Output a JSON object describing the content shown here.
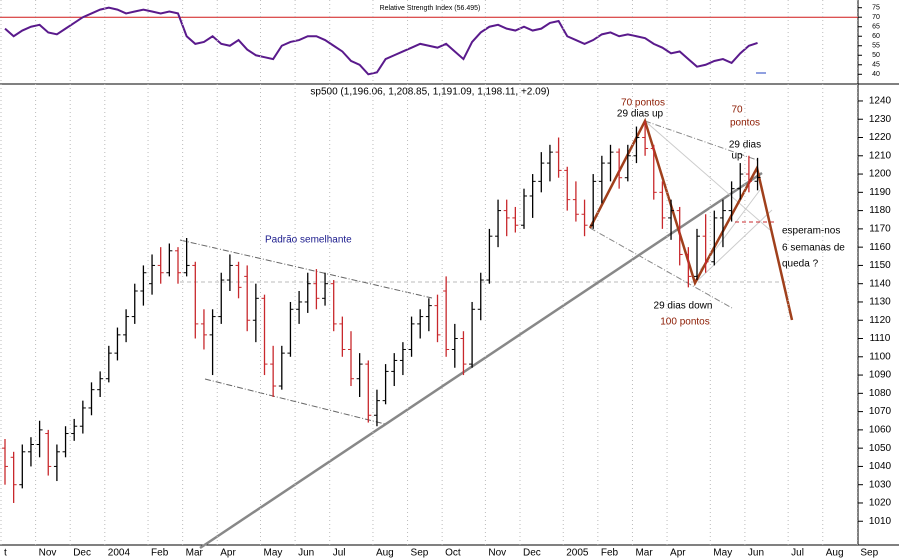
{
  "chart_data": [
    {
      "type": "line",
      "title": "Relative Strength Index (56.495)",
      "ylim": [
        37,
        78
      ],
      "yticks": [
        40,
        45,
        50,
        55,
        60,
        65,
        70,
        75
      ],
      "reference_line": 70,
      "reference_color": "#d01818",
      "series": [
        {
          "name": "RSI",
          "color": "#5a1a8c",
          "values": [
            64,
            60,
            63,
            65,
            66,
            62,
            61,
            64,
            67,
            70,
            72,
            74,
            75,
            74,
            72,
            73,
            74,
            73,
            72,
            73,
            72,
            60,
            56,
            57,
            60,
            56,
            55,
            58,
            53,
            50,
            49,
            48,
            55,
            57,
            58,
            60,
            60,
            58,
            55,
            52,
            47,
            45,
            40,
            41,
            48,
            50,
            52,
            54,
            56,
            55,
            54,
            56,
            52,
            48,
            57,
            62,
            65,
            66,
            64,
            63,
            65,
            63,
            64,
            67,
            68,
            60,
            58,
            56,
            58,
            61,
            62,
            60,
            61,
            60,
            59,
            56,
            54,
            51,
            52,
            48,
            44,
            45,
            47,
            48,
            46,
            51,
            55,
            56.495,
            null,
            null,
            null,
            null,
            null,
            null,
            null,
            null,
            null,
            null,
            null,
            null,
            null,
            null,
            null
          ]
        }
      ]
    },
    {
      "type": "ohlc",
      "title": "sp500 (1,196.06, 1,208.85, 1,191.09, 1,198.11, +2.09)",
      "ylim": [
        997,
        1246
      ],
      "yticks": [
        1010,
        1020,
        1030,
        1040,
        1050,
        1060,
        1070,
        1080,
        1090,
        1100,
        1110,
        1120,
        1130,
        1140,
        1150,
        1160,
        1170,
        1180,
        1190,
        1200,
        1210,
        1220,
        1230,
        1240
      ],
      "categories": [
        "t",
        null,
        null,
        null,
        "Nov",
        null,
        null,
        null,
        "Dec",
        null,
        null,
        null,
        "2004",
        null,
        null,
        null,
        null,
        "Feb",
        null,
        null,
        null,
        "Mar",
        null,
        null,
        null,
        "Apr",
        null,
        null,
        null,
        null,
        "May",
        null,
        null,
        null,
        "Jun",
        null,
        null,
        null,
        "Jul",
        null,
        null,
        null,
        null,
        "Aug",
        null,
        null,
        null,
        "Sep",
        null,
        null,
        null,
        "Oct",
        null,
        null,
        null,
        null,
        "Nov",
        null,
        null,
        null,
        "Dec",
        null,
        null,
        null,
        null,
        "2005",
        null,
        null,
        null,
        "Feb",
        null,
        null,
        null,
        "Mar",
        null,
        null,
        null,
        "Apr",
        null,
        null,
        null,
        null,
        "May",
        null,
        null,
        null,
        "Jun",
        null,
        null,
        null,
        null,
        "Jul",
        null,
        null,
        null,
        "Aug",
        null,
        null,
        null,
        "Sep",
        null,
        null,
        null
      ],
      "open": [
        1050,
        1045,
        1030,
        1048,
        1052,
        1058,
        1040,
        1048,
        1058,
        1062,
        1072,
        1082,
        1088,
        1102,
        1112,
        1122,
        1136,
        1140,
        1150,
        1146,
        1158,
        1146,
        1150,
        1118,
        1112,
        1122,
        1142,
        1150,
        1144,
        1120,
        1132,
        1096,
        1084,
        1102,
        1126,
        1130,
        1140,
        1132,
        1140,
        1118,
        1104,
        1088,
        1096,
        1068,
        1076,
        1092,
        1098,
        1104,
        1118,
        1122,
        1128,
        1136,
        1104,
        1110,
        1096,
        1126,
        1142,
        1166,
        1180,
        1176,
        1172,
        1188,
        1196,
        1206,
        1212,
        1202,
        1186,
        1178,
        1172,
        1196,
        1206,
        1212,
        1198,
        1210,
        1220,
        1214,
        1190,
        1176,
        1180,
        1156,
        1144,
        1166,
        1152,
        1176,
        1180,
        1192,
        1200,
        1196.06,
        null,
        null,
        null,
        null,
        null,
        null,
        null,
        null,
        null,
        null,
        null,
        null,
        null,
        null,
        null
      ],
      "high": [
        1055,
        1048,
        1052,
        1056,
        1065,
        1060,
        1052,
        1062,
        1066,
        1076,
        1086,
        1092,
        1106,
        1116,
        1126,
        1140,
        1150,
        1156,
        1160,
        1162,
        1160,
        1165,
        1152,
        1126,
        1126,
        1146,
        1156,
        1152,
        1150,
        1140,
        1134,
        1106,
        1106,
        1130,
        1136,
        1146,
        1148,
        1146,
        1142,
        1122,
        1114,
        1102,
        1098,
        1082,
        1096,
        1102,
        1108,
        1122,
        1126,
        1132,
        1134,
        1144,
        1118,
        1114,
        1130,
        1146,
        1170,
        1186,
        1186,
        1182,
        1192,
        1200,
        1212,
        1216,
        1220,
        1204,
        1196,
        1186,
        1200,
        1210,
        1216,
        1214,
        1216,
        1226,
        1229,
        1216,
        1196,
        1186,
        1182,
        1160,
        1170,
        1178,
        1180,
        1186,
        1196,
        1206,
        1210,
        1208.85,
        null,
        null,
        null,
        null,
        null,
        null,
        null,
        null,
        null,
        null,
        null,
        null,
        null,
        null,
        null
      ],
      "low": [
        1030,
        1020,
        1028,
        1040,
        1045,
        1035,
        1032,
        1045,
        1054,
        1058,
        1068,
        1078,
        1086,
        1098,
        1108,
        1118,
        1128,
        1134,
        1140,
        1144,
        1140,
        1144,
        1110,
        1104,
        1090,
        1118,
        1136,
        1132,
        1114,
        1108,
        1090,
        1078,
        1082,
        1100,
        1118,
        1124,
        1126,
        1128,
        1114,
        1100,
        1084,
        1078,
        1064,
        1062,
        1074,
        1084,
        1090,
        1100,
        1110,
        1114,
        1108,
        1100,
        1094,
        1090,
        1094,
        1120,
        1140,
        1160,
        1166,
        1168,
        1170,
        1176,
        1190,
        1196,
        1198,
        1180,
        1174,
        1166,
        1170,
        1184,
        1196,
        1192,
        1196,
        1206,
        1210,
        1186,
        1170,
        1164,
        1150,
        1138,
        1142,
        1146,
        1150,
        1160,
        1174,
        1186,
        1190,
        1191.09,
        null,
        null,
        null,
        null,
        null,
        null,
        null,
        null,
        null,
        null,
        null,
        null,
        null,
        null,
        null
      ],
      "close": [
        1040,
        1030,
        1048,
        1052,
        1060,
        1040,
        1048,
        1058,
        1062,
        1072,
        1082,
        1088,
        1102,
        1112,
        1122,
        1136,
        1146,
        1150,
        1146,
        1158,
        1146,
        1150,
        1118,
        1112,
        1122,
        1142,
        1150,
        1138,
        1120,
        1132,
        1096,
        1084,
        1102,
        1126,
        1130,
        1140,
        1132,
        1140,
        1118,
        1104,
        1088,
        1096,
        1068,
        1076,
        1092,
        1098,
        1104,
        1118,
        1122,
        1128,
        1112,
        1104,
        1110,
        1096,
        1126,
        1142,
        1166,
        1180,
        1176,
        1172,
        1188,
        1196,
        1206,
        1212,
        1202,
        1186,
        1178,
        1172,
        1196,
        1206,
        1212,
        1198,
        1210,
        1220,
        1214,
        1190,
        1176,
        1180,
        1156,
        1144,
        1166,
        1152,
        1176,
        1180,
        1192,
        1200,
        1196,
        1198.11,
        null,
        null,
        null,
        null,
        null,
        null,
        null,
        null,
        null,
        null,
        null,
        null,
        null,
        null,
        null
      ],
      "up_color": "#000000",
      "down_color": "#c8282c",
      "x_grid": true,
      "annotations": [
        {
          "text": "Padrão semelhante",
          "color": "#1a1a8c"
        },
        {
          "text": "70 pontos",
          "color": "#8b1a00"
        },
        {
          "text": "29 dias up",
          "color": "#000000"
        },
        {
          "text": "70",
          "color": "#8b1a00"
        },
        {
          "text": "pontos",
          "color": "#8b1a00"
        },
        {
          "text": "29 dias",
          "color": "#000000"
        },
        {
          "text": "up",
          "color": "#000000"
        },
        {
          "text": "29 dias down",
          "color": "#000000"
        },
        {
          "text": "100 pontos",
          "color": "#8b1a00"
        },
        {
          "text": "esperam-nos",
          "color": "#000000"
        },
        {
          "text": "6 semanas de",
          "color": "#000000"
        },
        {
          "text": "queda ?",
          "color": "#000000"
        }
      ]
    }
  ]
}
